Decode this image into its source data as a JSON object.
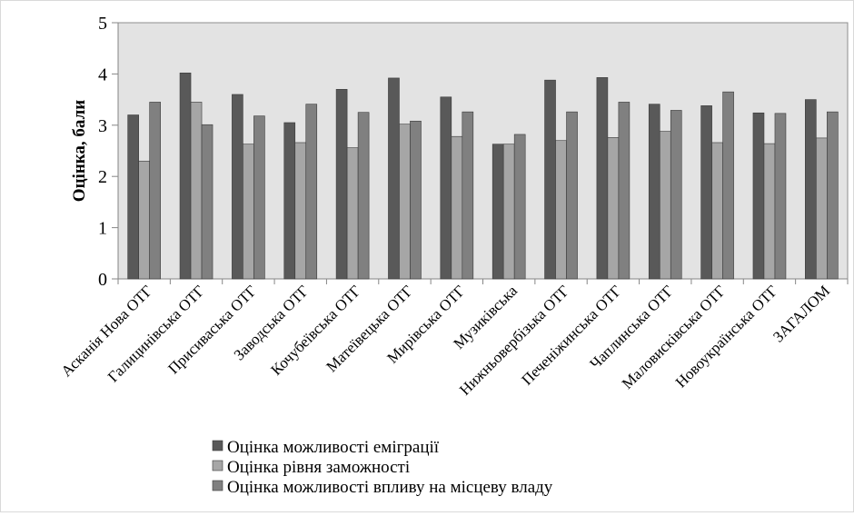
{
  "chart_data": {
    "type": "bar",
    "ylabel": "Оцінка, бали",
    "ylim": [
      0,
      5
    ],
    "yticks": [
      "0",
      "1",
      "2",
      "3",
      "4",
      "5"
    ],
    "grid": false,
    "legend_position": "bottom",
    "plot_background": "#e3e3e3",
    "categories": [
      "Асканія Нова ОТГ",
      "Галицинівська ОТГ",
      "Присиваська ОТГ",
      "Заводська ОТГ",
      "Кочубеївська ОТГ",
      "Матеївецька ОТГ",
      "Мирівська ОТГ",
      "Музиківська",
      "Нижньовербізька ОТГ",
      "Печеніжинська ОТГ",
      "Чаплинська ОТГ",
      "Маловисківська ОТГ",
      "Новоукраїнська ОТГ",
      "ЗАГАЛОМ"
    ],
    "series": [
      {
        "name": "Оцінка можливості еміграції",
        "color": "#595959",
        "values": [
          3.2,
          4.02,
          3.6,
          3.05,
          3.7,
          3.92,
          3.55,
          2.63,
          3.88,
          3.93,
          3.41,
          3.38,
          3.24,
          3.5
        ]
      },
      {
        "name": "Оцінка рівня заможності",
        "color": "#a6a6a6",
        "values": [
          2.3,
          3.45,
          2.63,
          2.66,
          2.56,
          3.02,
          2.78,
          2.63,
          2.7,
          2.76,
          2.88,
          2.66,
          2.64,
          2.75
        ]
      },
      {
        "name": "Оцінка можливості впливу на місцеву владу",
        "color": "#808080",
        "values": [
          3.45,
          3.01,
          3.18,
          3.41,
          3.25,
          3.08,
          3.26,
          2.82,
          3.26,
          3.45,
          3.29,
          3.65,
          3.23,
          3.26
        ]
      }
    ]
  }
}
